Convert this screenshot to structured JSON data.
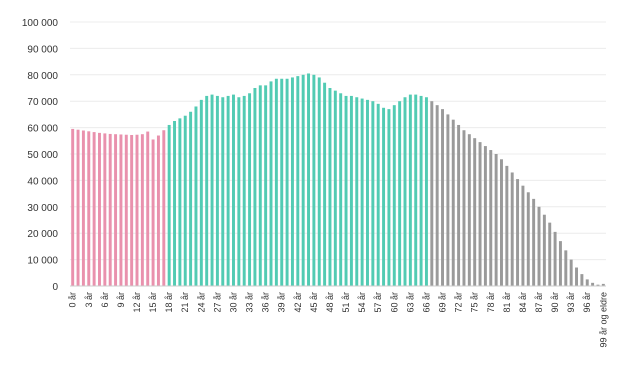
{
  "chart_data": {
    "type": "bar",
    "title": "",
    "xlabel": "",
    "ylabel": "",
    "ylim": [
      0,
      100000
    ],
    "grid": true,
    "legend": "none",
    "y_ticks": [
      {
        "value": 0,
        "label": "0"
      },
      {
        "value": 10000,
        "label": "10 000"
      },
      {
        "value": 20000,
        "label": "20 000"
      },
      {
        "value": 30000,
        "label": "30 000"
      },
      {
        "value": 40000,
        "label": "40 000"
      },
      {
        "value": 50000,
        "label": "50 000"
      },
      {
        "value": 60000,
        "label": "60 000"
      },
      {
        "value": 70000,
        "label": "70 000"
      },
      {
        "value": 80000,
        "label": "80 000"
      },
      {
        "value": 90000,
        "label": "90 000"
      },
      {
        "value": 100000,
        "label": "100 000"
      }
    ],
    "categories": [
      "0 år",
      "1 år",
      "2 år",
      "3 år",
      "4 år",
      "5 år",
      "6 år",
      "7 år",
      "8 år",
      "9 år",
      "10 år",
      "11 år",
      "12 år",
      "13 år",
      "14 år",
      "15 år",
      "16 år",
      "17 år",
      "18 år",
      "19 år",
      "20 år",
      "21 år",
      "22 år",
      "23 år",
      "24 år",
      "25 år",
      "26 år",
      "27 år",
      "28 år",
      "29 år",
      "30 år",
      "31 år",
      "32 år",
      "33 år",
      "34 år",
      "35 år",
      "36 år",
      "37 år",
      "38 år",
      "39 år",
      "40 år",
      "41 år",
      "42 år",
      "43 år",
      "44 år",
      "45 år",
      "46 år",
      "47 år",
      "48 år",
      "49 år",
      "50 år",
      "51 år",
      "52 år",
      "53 år",
      "54 år",
      "55 år",
      "56 år",
      "57 år",
      "58 år",
      "59 år",
      "60 år",
      "61 år",
      "62 år",
      "63 år",
      "64 år",
      "65 år",
      "66 år",
      "67 år",
      "68 år",
      "69 år",
      "70 år",
      "71 år",
      "72 år",
      "73 år",
      "74 år",
      "75 år",
      "76 år",
      "77 år",
      "78 år",
      "79 år",
      "80 år",
      "81 år",
      "82 år",
      "83 år",
      "84 år",
      "85 år",
      "86 år",
      "87 år",
      "88 år",
      "89 år",
      "90 år",
      "91 år",
      "92 år",
      "93 år",
      "94 år",
      "95 år",
      "96 år",
      "97 år",
      "98 år",
      "99 år og eldre"
    ],
    "visible_tick_labels": [
      "0 år",
      "3 år",
      "6 år",
      "9 år",
      "12 år",
      "15 år",
      "18 år",
      "21 år",
      "24 år",
      "27 år",
      "30 år",
      "33 år",
      "36 år",
      "39 år",
      "42 år",
      "45 år",
      "48 år",
      "51 år",
      "54 år",
      "57 år",
      "60 år",
      "63 år",
      "66 år",
      "69 år",
      "72 år",
      "75 år",
      "78 år",
      "81 år",
      "84 år",
      "87 år",
      "90 år",
      "93 år",
      "96 år",
      "99 år og eldre"
    ],
    "values": [
      59500,
      59200,
      58900,
      58600,
      58300,
      58000,
      57800,
      57600,
      57500,
      57400,
      57300,
      57200,
      57300,
      57500,
      58500,
      55500,
      57000,
      59000,
      61000,
      62500,
      63500,
      64500,
      66000,
      68000,
      70500,
      72000,
      72500,
      72000,
      71500,
      72000,
      72500,
      71500,
      72000,
      73000,
      75000,
      76000,
      76000,
      77500,
      78500,
      78500,
      78500,
      79000,
      79500,
      80000,
      80500,
      80000,
      79000,
      77000,
      75000,
      74000,
      73000,
      72000,
      72000,
      71500,
      71000,
      70500,
      70000,
      69000,
      67500,
      67000,
      68500,
      70000,
      71500,
      72500,
      72500,
      72000,
      71500,
      70000,
      68500,
      67000,
      65000,
      63000,
      61000,
      59000,
      57500,
      56000,
      54500,
      53000,
      51500,
      50000,
      48000,
      45500,
      43000,
      40500,
      38000,
      35500,
      33000,
      30000,
      27000,
      24000,
      20500,
      17000,
      13500,
      10000,
      7000,
      4500,
      2500,
      1200,
      500,
      800
    ],
    "series": [
      {
        "name": "",
        "range": [
          0,
          17
        ],
        "color": "#e991ad"
      },
      {
        "name": "",
        "range": [
          18,
          66
        ],
        "color": "#52cbb3"
      },
      {
        "name": "",
        "range": [
          67,
          99
        ],
        "color": "#9a9a9a"
      }
    ]
  }
}
